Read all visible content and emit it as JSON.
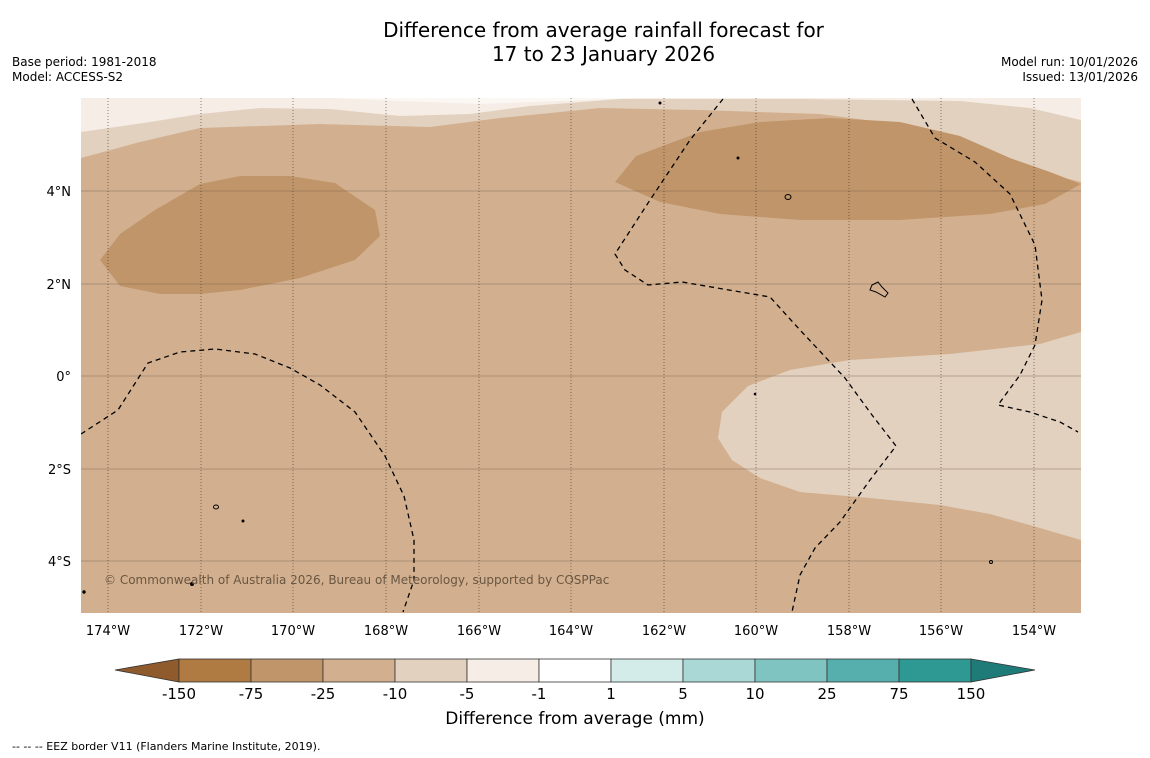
{
  "title": {
    "line1": "Difference from average rainfall forecast for",
    "line2": "17 to 23 January 2026"
  },
  "meta_left": {
    "base_period": "Base period: 1981-2018",
    "model": "Model: ACCESS-S2"
  },
  "meta_right": {
    "model_run": "Model run: 10/01/2026",
    "issued": "Issued: 13/01/2026"
  },
  "map": {
    "copyright": "© Commonwealth of Australia 2026, Bureau of Meteorology, supported by COSPPac",
    "lat_labels": [
      "4°N",
      "2°N",
      "0°",
      "2°S",
      "4°S"
    ],
    "lon_labels": [
      "174°W",
      "172°W",
      "170°W",
      "168°W",
      "166°W",
      "164°W",
      "162°W",
      "160°W",
      "158°W",
      "156°W",
      "154°W"
    ]
  },
  "legend": {
    "tick_labels": [
      "-150",
      "-75",
      "-25",
      "-10",
      "-5",
      "-1",
      "1",
      "5",
      "10",
      "25",
      "75",
      "150"
    ],
    "label": "Difference from average (mm)",
    "colors": [
      "#8f5a2c",
      "#b07a43",
      "#c1956a",
      "#d2b08f",
      "#e3d1c0",
      "#f5ede6",
      "#ffffff",
      "#d3ecea",
      "#a9d8d6",
      "#80c4c2",
      "#57afad",
      "#2e9893",
      "#1f7b78"
    ]
  },
  "footer": "--  --  -- EEZ border V11 (Flanders Marine Institute, 2019)."
}
